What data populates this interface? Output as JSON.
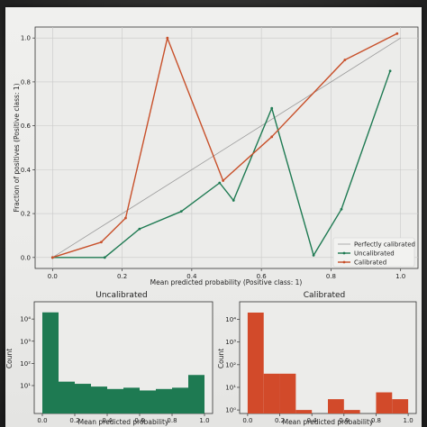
{
  "chart_data": [
    {
      "type": "line",
      "title": "",
      "xlabel": "Mean predicted probability (Positive class: 1)",
      "ylabel": "Fraction of positives (Positive class: 1)",
      "xlim": [
        -0.05,
        1.05
      ],
      "ylim": [
        -0.05,
        1.05
      ],
      "xticks": [
        "0.0",
        "0.2",
        "0.4",
        "0.6",
        "0.8",
        "1.0"
      ],
      "yticks": [
        "0.0",
        "0.2",
        "0.4",
        "0.6",
        "0.8",
        "1.0"
      ],
      "grid": true,
      "legend_placement": "bottom-right",
      "series": [
        {
          "name": "Perfectly calibrated",
          "color": "#9a9a9a",
          "x": [
            0.0,
            1.0
          ],
          "y": [
            0.0,
            1.0
          ]
        },
        {
          "name": "Uncalibrated",
          "color": "#1e7a52",
          "x": [
            0.0,
            0.15,
            0.25,
            0.37,
            0.48,
            0.52,
            0.63,
            0.75,
            0.83,
            0.97
          ],
          "y": [
            0.0,
            0.0,
            0.13,
            0.21,
            0.34,
            0.26,
            0.68,
            0.01,
            0.22,
            0.85
          ]
        },
        {
          "name": "Calibrated",
          "color": "#c8502a",
          "x": [
            0.0,
            0.14,
            0.21,
            0.33,
            0.49,
            0.63,
            0.84,
            0.99
          ],
          "y": [
            0.0,
            0.07,
            0.18,
            1.0,
            0.35,
            0.55,
            0.9,
            1.02
          ]
        }
      ]
    },
    {
      "type": "bar",
      "title": "Uncalibrated",
      "xlabel": "Mean predicted probability",
      "ylabel": "Count",
      "yscale": "log",
      "xticks": [
        "0.0",
        "0.2",
        "0.4",
        "0.6",
        "0.8",
        "1.0"
      ],
      "yticks": [
        "10¹",
        "10²",
        "10³",
        "10⁴"
      ],
      "color": "#1e7a52",
      "bin_edges": [
        0.0,
        0.1,
        0.2,
        0.3,
        0.4,
        0.5,
        0.6,
        0.7,
        0.8,
        0.9,
        1.0
      ],
      "values": [
        20000,
        15,
        12,
        9,
        7,
        8,
        6,
        7,
        8,
        30
      ]
    },
    {
      "type": "bar",
      "title": "Calibrated",
      "xlabel": "Mean predicted probability",
      "ylabel": "Count",
      "yscale": "log",
      "xticks": [
        "0.0",
        "0.2",
        "0.4",
        "0.6",
        "0.8",
        "1.0"
      ],
      "yticks": [
        "10⁰",
        "10¹",
        "10²",
        "10³",
        "10⁴"
      ],
      "color": "#d24a2a",
      "bin_edges": [
        0.0,
        0.1,
        0.2,
        0.3,
        0.4,
        0.5,
        0.6,
        0.7,
        0.8,
        0.9,
        1.0
      ],
      "values": [
        20000,
        40,
        40,
        1,
        0,
        3,
        1,
        0,
        6,
        3
      ]
    }
  ]
}
